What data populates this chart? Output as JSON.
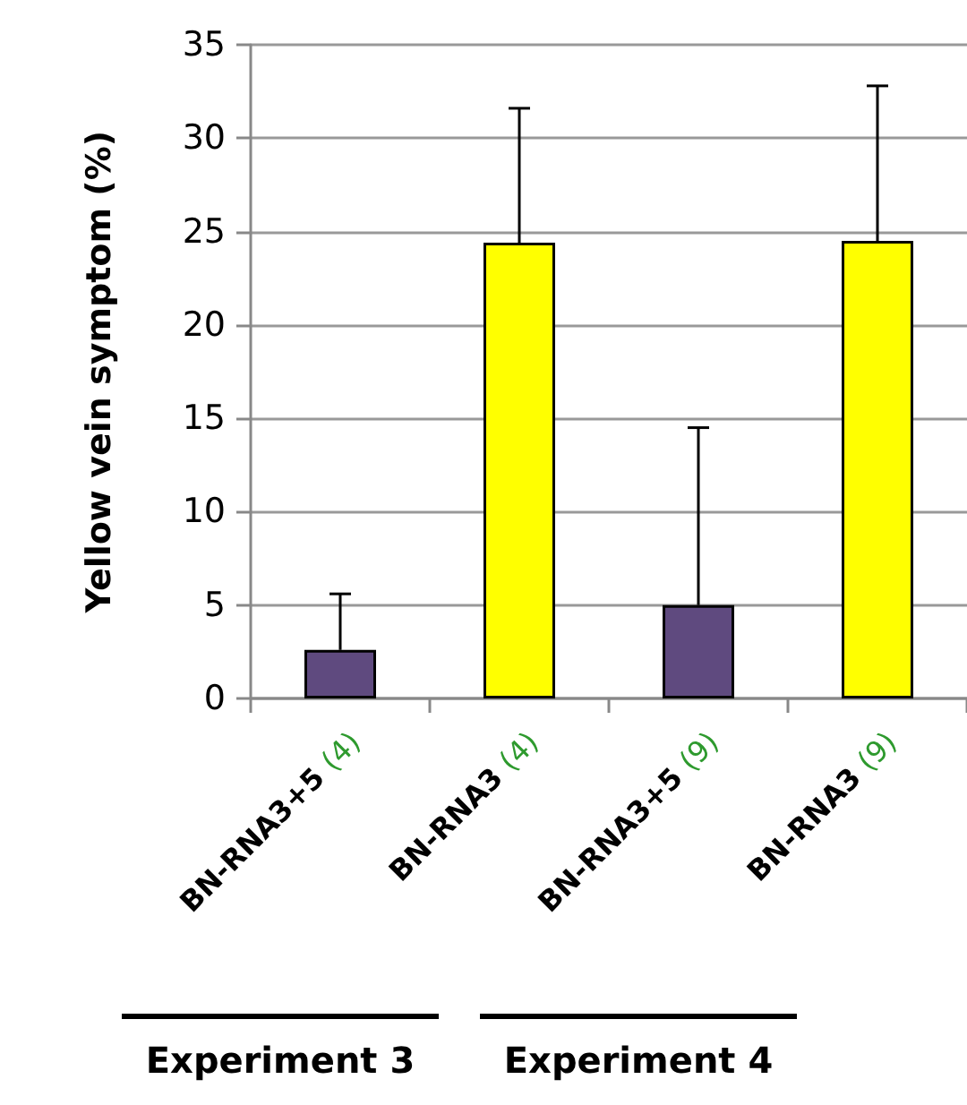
{
  "chart_data": {
    "type": "bar",
    "ylabel": "Yellow vein symptom (%)",
    "categories": [
      "BN-RNA3+5 (4)",
      "BN-RNA3 (4)",
      "BN-RNA3+5 (9)",
      "BN-RNA3 (9)"
    ],
    "values": [
      2.6,
      24.4,
      5.0,
      24.5
    ],
    "colors": [
      "#5f4a7f",
      "#ffff00",
      "#5f4a7f",
      "#ffff00"
    ],
    "errors": [
      [
        2.6,
        5.6
      ],
      [
        24.4,
        31.6
      ],
      [
        5.0,
        14.5
      ],
      [
        24.5,
        32.8
      ]
    ],
    "ylim": [
      0,
      35
    ],
    "yticks": [
      0,
      5,
      10,
      15,
      20,
      25,
      30,
      35
    ],
    "grid": "y",
    "annotations": [
      "Experiment 3",
      "Experiment 4"
    ]
  }
}
